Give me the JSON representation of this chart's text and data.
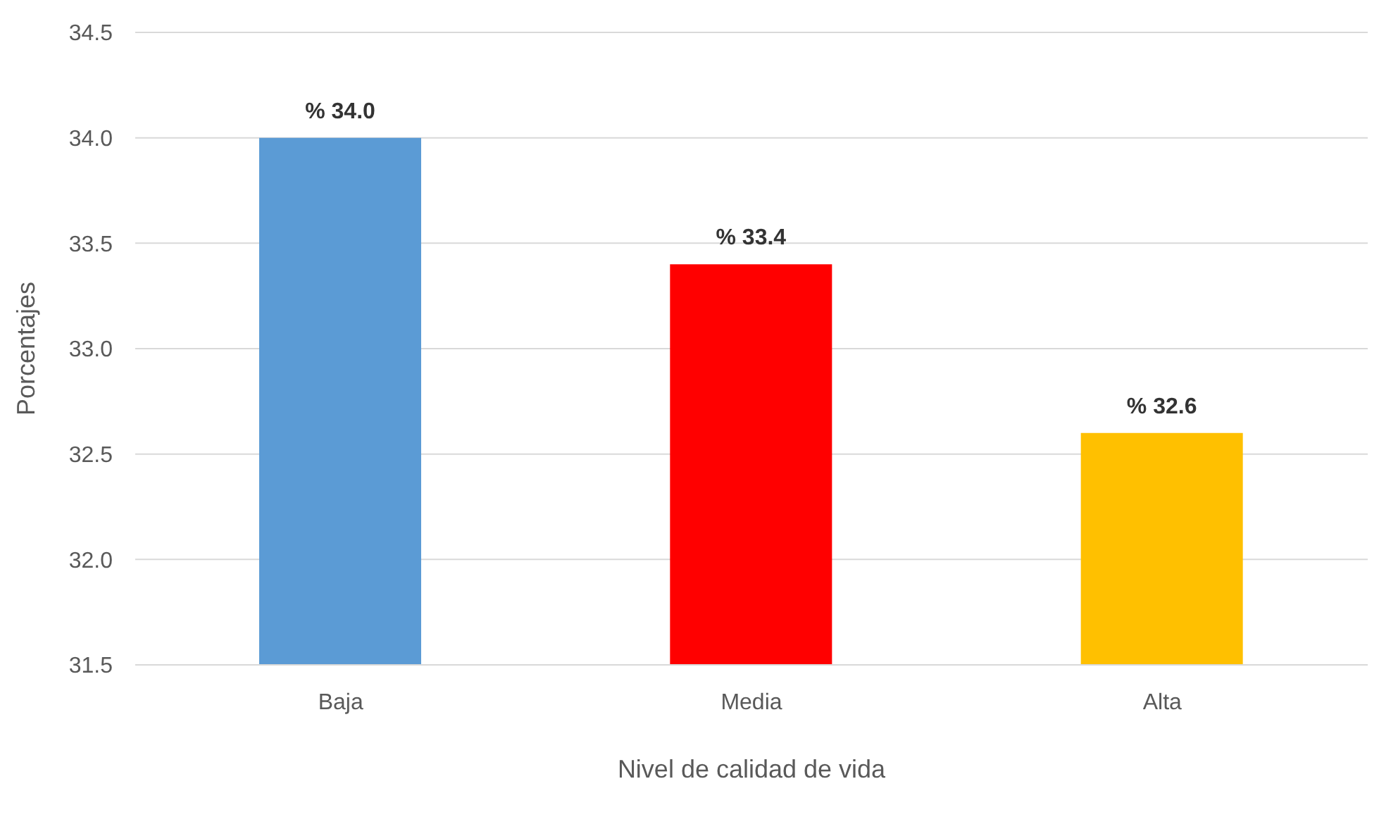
{
  "chart_data": {
    "type": "bar",
    "xlabel": "Nivel de calidad de vida",
    "ylabel": "Porcentajes",
    "categories": [
      "Baja",
      "Media",
      "Alta"
    ],
    "values": [
      34.0,
      33.4,
      32.6
    ],
    "colors": [
      "#5b9bd5",
      "#ff0000",
      "#ffc000"
    ],
    "value_labels": [
      "% 34.0",
      "% 33.4",
      "% 32.6"
    ],
    "ylim": [
      31.5,
      34.5
    ],
    "yticks": [
      {
        "value": 31.5,
        "label": "31.5"
      },
      {
        "value": 32,
        "label": "32.0"
      },
      {
        "value": 32.5,
        "label": "32.5"
      },
      {
        "value": 33,
        "label": "33.0"
      },
      {
        "value": 33.5,
        "label": "33.5"
      },
      {
        "value": 34,
        "label": "34.0"
      },
      {
        "value": 34.5,
        "label": "34.5"
      }
    ],
    "grid": "y"
  }
}
